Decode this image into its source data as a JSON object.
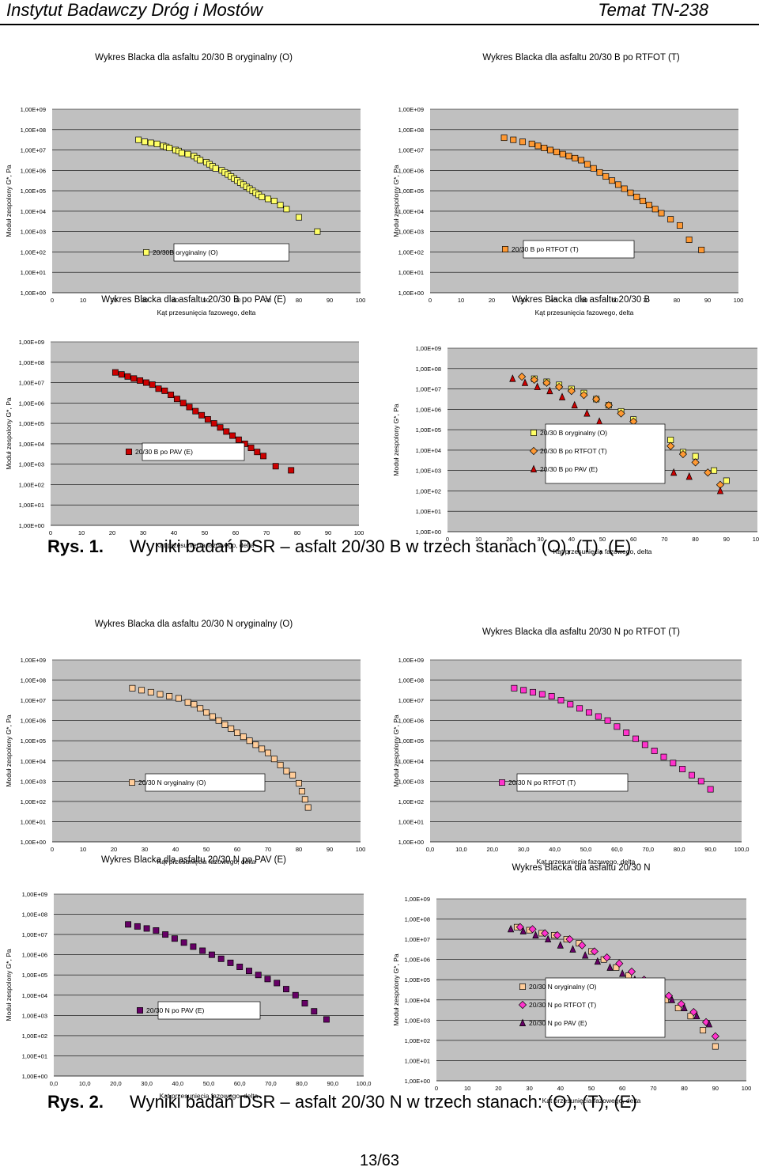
{
  "header": {
    "left": "Instytut Badawczy Dróg i Mostów",
    "right": "Temat TN-238"
  },
  "colors": {
    "plot_bg": "#c0c0c0",
    "grid": "#000000"
  },
  "captions": [
    {
      "num": "Rys. 1.",
      "text": "Wyniki badań DSR – asfalt 20/30 B w trzech stanach (O), (T), (E)"
    },
    {
      "num": "Rys. 2.",
      "text": "Wyniki badań DSR – asfalt 20/30 N w trzech stanach: (O), (T), (E)"
    }
  ],
  "page_number": "13/63",
  "chart_data": [
    {
      "type": "scatter",
      "title": "Wykres Blacka dla asfaltu 20/30 B oryginalny (O)",
      "xlabel": "Kąt przesunięcia fazowego, delta",
      "ylabel": "Moduł zespolony G*, Pa",
      "xlim": [
        0,
        100
      ],
      "ylim": [
        0,
        9
      ],
      "yticks": [
        "1,00E+00",
        "1,00E+01",
        "1,00E+02",
        "1,00E+03",
        "1,00E+04",
        "1,00E+05",
        "1,00E+06",
        "1,00E+07",
        "1,00E+08",
        "1,00E+09"
      ],
      "xticks": [
        "0",
        "10",
        "20",
        "30",
        "40",
        "50",
        "60",
        "70",
        "80",
        "90",
        "100"
      ],
      "series": [
        {
          "name": "20/30B oryginalny (O)",
          "marker": "square",
          "color": "#ffff66",
          "x": [
            28,
            30,
            32,
            34,
            36,
            37,
            38,
            40,
            41,
            42,
            44,
            46,
            47,
            48,
            50,
            51,
            52,
            53,
            55,
            56,
            57,
            58,
            59,
            60,
            61,
            62,
            63,
            64,
            65,
            66,
            67,
            68,
            70,
            72,
            74,
            76,
            80,
            86
          ],
          "y": [
            7.5,
            7.4,
            7.35,
            7.3,
            7.2,
            7.15,
            7.1,
            7.0,
            6.95,
            6.85,
            6.8,
            6.7,
            6.6,
            6.5,
            6.4,
            6.3,
            6.2,
            6.1,
            6.0,
            5.9,
            5.8,
            5.7,
            5.6,
            5.5,
            5.4,
            5.3,
            5.2,
            5.1,
            5.0,
            4.9,
            4.8,
            4.7,
            4.6,
            4.5,
            4.3,
            4.1,
            3.7,
            3.0
          ]
        }
      ]
    },
    {
      "type": "scatter",
      "title": "Wykres Blacka dla asfaltu 20/30 B po RTFOT (T)",
      "xlabel": "Kąt przesunięcia fazowego, delta",
      "ylabel": "Moduł zespolony G*, Pa",
      "xlim": [
        0,
        100
      ],
      "ylim": [
        0,
        9
      ],
      "yticks": [
        "1,00E+00",
        "1,00E+01",
        "1,00E+02",
        "1,00E+03",
        "1,00E+04",
        "1,00E+05",
        "1,00E+06",
        "1,00E+07",
        "1,00E+08",
        "1,00E+09"
      ],
      "xticks": [
        "0",
        "10",
        "20",
        "30",
        "40",
        "50",
        "60",
        "70",
        "80",
        "90",
        "100"
      ],
      "series": [
        {
          "name": "20/30 B po RTFOT (T)",
          "marker": "square",
          "color": "#ff9933",
          "x": [
            24,
            27,
            30,
            33,
            35,
            37,
            39,
            41,
            43,
            45,
            47,
            49,
            51,
            53,
            55,
            57,
            59,
            61,
            63,
            65,
            67,
            69,
            71,
            73,
            75,
            78,
            81,
            84,
            88
          ],
          "y": [
            7.6,
            7.5,
            7.4,
            7.3,
            7.2,
            7.1,
            7.0,
            6.9,
            6.8,
            6.7,
            6.6,
            6.5,
            6.3,
            6.1,
            5.9,
            5.7,
            5.5,
            5.3,
            5.1,
            4.9,
            4.7,
            4.5,
            4.3,
            4.1,
            3.9,
            3.6,
            3.3,
            2.6,
            2.1
          ]
        }
      ]
    },
    {
      "type": "scatter",
      "title": "Wykres Blacka dla asfaltu 20/30 B po PAV (E)",
      "xlabel": "Kąt przesunięcia fazowego, delta",
      "ylabel": "Moduł zespolony G*, Pa",
      "xlim": [
        0,
        100
      ],
      "ylim": [
        0,
        9
      ],
      "yticks": [
        "1,00E+00",
        "1,00E+01",
        "1,00E+02",
        "1,00E+03",
        "1,00E+04",
        "1,00E+05",
        "1,00E+06",
        "1,00E+07",
        "1,00E+08",
        "1,00E+09"
      ],
      "xticks": [
        "0",
        "10",
        "20",
        "30",
        "40",
        "50",
        "60",
        "70",
        "80",
        "90",
        "100"
      ],
      "series": [
        {
          "name": "20/30 B po PAV (E)",
          "marker": "square",
          "color": "#cc0000",
          "x": [
            21,
            23,
            25,
            27,
            29,
            31,
            33,
            35,
            37,
            39,
            41,
            43,
            45,
            47,
            49,
            51,
            53,
            55,
            57,
            59,
            61,
            63,
            65,
            67,
            69,
            73,
            78
          ],
          "y": [
            7.5,
            7.4,
            7.3,
            7.2,
            7.1,
            7.0,
            6.9,
            6.7,
            6.6,
            6.4,
            6.2,
            6.0,
            5.8,
            5.6,
            5.4,
            5.2,
            5.0,
            4.8,
            4.6,
            4.4,
            4.2,
            4.0,
            3.8,
            3.6,
            3.4,
            2.9,
            2.7
          ]
        }
      ]
    },
    {
      "type": "scatter",
      "title": "Wykres Blacka dla asfaltu 20/30 B",
      "xlabel": "Kąt przesunięcia fazowego, delta",
      "ylabel": "Moduł zespolony G*, Pa",
      "xlim": [
        0,
        100
      ],
      "ylim": [
        0,
        9
      ],
      "yticks": [
        "1,00E+00",
        "1,00E+01",
        "1,00E+02",
        "1,00E+03",
        "1,00E+04",
        "1,00E+05",
        "1,00E+06",
        "1,00E+07",
        "1,00E+08",
        "1,00E+09"
      ],
      "xticks": [
        "0",
        "10",
        "20",
        "30",
        "40",
        "50",
        "60",
        "70",
        "80",
        "90",
        "100"
      ],
      "series": [
        {
          "name": "20/30 B oryginalny (O)",
          "marker": "square",
          "color": "#ffff66",
          "x": [
            28,
            32,
            36,
            40,
            44,
            48,
            52,
            56,
            60,
            64,
            68,
            72,
            76,
            80,
            86,
            90
          ],
          "y": [
            7.5,
            7.35,
            7.2,
            7.0,
            6.8,
            6.5,
            6.2,
            5.9,
            5.5,
            5.1,
            4.7,
            4.5,
            3.9,
            3.7,
            3.0,
            2.5
          ]
        },
        {
          "name": "20/30 B po RTFOT (T)",
          "marker": "diamond",
          "color": "#ff9933",
          "x": [
            24,
            28,
            32,
            36,
            40,
            44,
            48,
            52,
            56,
            60,
            64,
            68,
            72,
            76,
            80,
            84,
            88
          ],
          "y": [
            7.6,
            7.45,
            7.3,
            7.1,
            6.9,
            6.7,
            6.5,
            6.2,
            5.8,
            5.4,
            5.0,
            4.6,
            4.2,
            3.8,
            3.4,
            2.9,
            2.3
          ]
        },
        {
          "name": "20/30 B po PAV (E)",
          "marker": "triangle",
          "color": "#cc0000",
          "x": [
            21,
            25,
            29,
            33,
            37,
            41,
            45,
            49,
            53,
            57,
            61,
            65,
            69,
            73,
            78,
            88
          ],
          "y": [
            7.5,
            7.3,
            7.1,
            6.9,
            6.6,
            6.2,
            5.8,
            5.4,
            5.0,
            4.6,
            4.2,
            3.8,
            3.4,
            2.9,
            2.7,
            2.0
          ]
        }
      ]
    },
    {
      "type": "scatter",
      "title": "Wykres Blacka dla asfaltu 20/30 N oryginalny (O)",
      "xlabel": "Kąt przesunięcia fazowego, delta",
      "ylabel": "Moduł zespolony G*, Pa",
      "xlim": [
        0,
        100
      ],
      "ylim": [
        0,
        9
      ],
      "yticks": [
        "1,00E+00",
        "1,00E+01",
        "1,00E+02",
        "1,00E+03",
        "1,00E+04",
        "1,00E+05",
        "1,00E+06",
        "1,00E+07",
        "1,00E+08",
        "1,00E+09"
      ],
      "xticks": [
        "0",
        "10",
        "20",
        "30",
        "40",
        "50",
        "60",
        "70",
        "80",
        "90",
        "100"
      ],
      "series": [
        {
          "name": "20/30 N oryginalny (O)",
          "marker": "square",
          "color": "#ffcc99",
          "x": [
            26,
            29,
            32,
            35,
            38,
            41,
            44,
            46,
            48,
            50,
            52,
            54,
            56,
            58,
            60,
            62,
            64,
            66,
            68,
            70,
            72,
            74,
            76,
            78,
            80,
            81,
            82,
            83
          ],
          "y": [
            7.6,
            7.5,
            7.4,
            7.3,
            7.2,
            7.1,
            6.9,
            6.8,
            6.6,
            6.4,
            6.2,
            6.0,
            5.8,
            5.6,
            5.4,
            5.2,
            5.0,
            4.8,
            4.6,
            4.4,
            4.1,
            3.8,
            3.5,
            3.3,
            2.9,
            2.5,
            2.1,
            1.7
          ]
        }
      ]
    },
    {
      "type": "scatter",
      "title": "Wykres Blacka dla asfaltu 20/30 N po RTFOT (T)",
      "xlabel": "Kąt przesunięcia fazowego, delta",
      "ylabel": "Moduł zespolony G*, Pa",
      "xlim": [
        0,
        100
      ],
      "ylim": [
        0,
        9
      ],
      "yticks": [
        "1,00E+00",
        "1,00E+01",
        "1,00E+02",
        "1,00E+03",
        "1,00E+04",
        "1,00E+05",
        "1,00E+06",
        "1,00E+07",
        "1,00E+08",
        "1,00E+09"
      ],
      "xticks": [
        "0,0",
        "10,0",
        "20,0",
        "30,0",
        "40,0",
        "50,0",
        "60,0",
        "70,0",
        "80,0",
        "90,0",
        "100,0"
      ],
      "series": [
        {
          "name": "20/30 N po RTFOT (T)",
          "marker": "square",
          "color": "#ff33cc",
          "x": [
            27,
            30,
            33,
            36,
            39,
            42,
            45,
            48,
            51,
            54,
            57,
            60,
            63,
            66,
            69,
            72,
            75,
            78,
            81,
            84,
            87,
            90
          ],
          "y": [
            7.6,
            7.5,
            7.4,
            7.3,
            7.2,
            7.0,
            6.8,
            6.6,
            6.4,
            6.2,
            6.0,
            5.7,
            5.4,
            5.1,
            4.8,
            4.5,
            4.2,
            3.9,
            3.6,
            3.3,
            3.0,
            2.6
          ]
        }
      ]
    },
    {
      "type": "scatter",
      "title": "Wykres Blacka dla asfaltu 20/30 N po PAV (E)",
      "xlabel": "Kąt przesunięcia fazowego, delta",
      "ylabel": "Moduł zespolony G*, Pa",
      "xlim": [
        0,
        100
      ],
      "ylim": [
        0,
        9
      ],
      "yticks": [
        "1,00E+00",
        "1,00E+01",
        "1,00E+02",
        "1,00E+03",
        "1,00E+04",
        "1,00E+05",
        "1,00E+06",
        "1,00E+07",
        "1,00E+08",
        "1,00E+09"
      ],
      "xticks": [
        "0,0",
        "10,0",
        "20,0",
        "30,0",
        "40,0",
        "50,0",
        "60,0",
        "70,0",
        "80,0",
        "90,0",
        "100,0"
      ],
      "series": [
        {
          "name": "20/30 N po PAV (E)",
          "marker": "square",
          "color": "#660066",
          "x": [
            24,
            27,
            30,
            33,
            36,
            39,
            42,
            45,
            48,
            51,
            54,
            57,
            60,
            63,
            66,
            69,
            72,
            75,
            78,
            81,
            84,
            88
          ],
          "y": [
            7.5,
            7.4,
            7.3,
            7.2,
            7.0,
            6.8,
            6.6,
            6.4,
            6.2,
            6.0,
            5.8,
            5.6,
            5.4,
            5.2,
            5.0,
            4.8,
            4.6,
            4.3,
            4.0,
            3.6,
            3.2,
            2.8
          ]
        }
      ]
    },
    {
      "type": "scatter",
      "title": "Wykres Blacka dla asfaltu 20/30 N",
      "xlabel": "Kąt przesunięcia fazowego, delta",
      "ylabel": "Moduł zespolony G*, Pa",
      "xlim": [
        0,
        100
      ],
      "ylim": [
        0,
        9
      ],
      "yticks": [
        "1,00E+00",
        "1,00E+01",
        "1,00E+02",
        "1,00E+03",
        "1,00E+04",
        "1,00E+05",
        "1,00E+06",
        "1,00E+07",
        "1,00E+08",
        "1,00E+09"
      ],
      "xticks": [
        "0",
        "10",
        "20",
        "30",
        "40",
        "50",
        "60",
        "70",
        "80",
        "90",
        "100"
      ],
      "series": [
        {
          "name": "20/30 N oryginalny (O)",
          "marker": "square",
          "color": "#ffcc99",
          "x": [
            26,
            30,
            34,
            38,
            42,
            46,
            50,
            54,
            58,
            62,
            66,
            70,
            74,
            78,
            82,
            86,
            90
          ],
          "y": [
            7.6,
            7.45,
            7.3,
            7.2,
            7.0,
            6.8,
            6.4,
            6.0,
            5.6,
            5.2,
            4.8,
            4.4,
            4.0,
            3.6,
            3.2,
            2.5,
            1.7
          ]
        },
        {
          "name": "20/30 N po RTFOT (T)",
          "marker": "diamond",
          "color": "#ff33cc",
          "x": [
            27,
            31,
            35,
            39,
            43,
            47,
            51,
            55,
            59,
            63,
            67,
            71,
            75,
            79,
            83,
            87,
            90
          ],
          "y": [
            7.6,
            7.5,
            7.3,
            7.2,
            7.0,
            6.7,
            6.4,
            6.1,
            5.8,
            5.4,
            5.0,
            4.6,
            4.2,
            3.8,
            3.4,
            2.9,
            2.2
          ]
        },
        {
          "name": "20/30 N po PAV (E)",
          "marker": "triangle",
          "color": "#660066",
          "x": [
            24,
            28,
            32,
            36,
            40,
            44,
            48,
            52,
            56,
            60,
            64,
            68,
            72,
            76,
            80,
            84,
            88
          ],
          "y": [
            7.5,
            7.4,
            7.2,
            7.0,
            6.7,
            6.5,
            6.2,
            5.9,
            5.6,
            5.3,
            5.0,
            4.7,
            4.4,
            4.0,
            3.6,
            3.2,
            2.8
          ]
        }
      ]
    }
  ]
}
